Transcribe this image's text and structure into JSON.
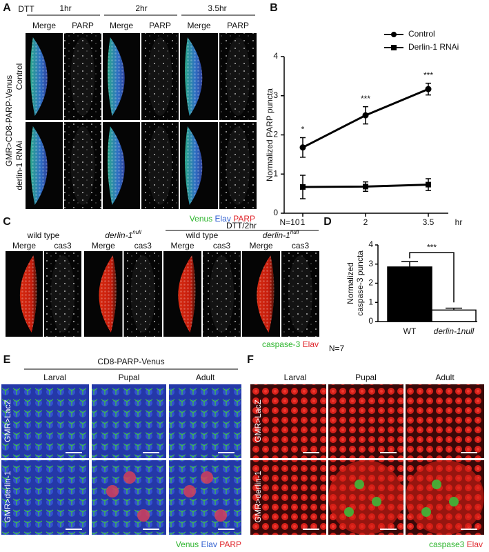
{
  "panel_labels": [
    "A",
    "B",
    "C",
    "D",
    "E",
    "F"
  ],
  "panel_a": {
    "treatment": "DTT",
    "timepoints": [
      "1hr",
      "2hr",
      "3.5hr"
    ],
    "columns": [
      "Merge",
      "PARP",
      "Merge",
      "PARP",
      "Merge",
      "PARP"
    ],
    "genotype": "GMR>CD8-PARP-Venus",
    "rows": [
      "Control",
      "derlin-1 RNAi"
    ],
    "legend": [
      "Venus",
      "Elav",
      "PARP"
    ]
  },
  "panel_c": {
    "groups": [
      {
        "text": "wild type"
      },
      {
        "text": "derlin-1",
        "sup": "null"
      },
      {
        "text": "wild type"
      },
      {
        "text": "derlin-1",
        "sup": "null"
      }
    ],
    "treatment": "DTT/2hr",
    "columns": [
      "Merge",
      "cas3",
      "Merge",
      "cas3",
      "Merge",
      "cas3",
      "Merge",
      "cas3"
    ],
    "legend": [
      "caspase-3",
      "Elav"
    ]
  },
  "panel_e": {
    "title": "CD8-PARP-Venus",
    "columns": [
      "Larval",
      "Pupal",
      "Adult"
    ],
    "rows": [
      "GMR>LacZ",
      "GMR>derlin-1"
    ],
    "legend": [
      "Venus",
      "Elav",
      "PARP"
    ]
  },
  "panel_f": {
    "columns": [
      "Larval",
      "Pupal",
      "Adult"
    ],
    "rows": [
      "GMR>LacZ",
      "GMR>derlin-1"
    ],
    "legend": [
      "caspase3",
      "Elav"
    ]
  },
  "chart_data": [
    {
      "type": "line",
      "ylabel": "Normalized PARP puncta",
      "xlabel": "hr",
      "note": "N=10",
      "categories": [
        "1",
        "2",
        "3.5"
      ],
      "series": [
        {
          "name": "Control",
          "color": "#000000",
          "marker": "circle",
          "values": [
            1.68,
            2.5,
            3.17
          ],
          "errors": [
            0.25,
            0.22,
            0.15
          ]
        },
        {
          "name": "Derlin-1 RNAi",
          "color": "#000000",
          "marker": "square",
          "values": [
            0.67,
            0.68,
            0.73
          ],
          "errors": [
            0.3,
            0.12,
            0.15
          ]
        }
      ],
      "annotations": [
        "*",
        "***",
        "***"
      ],
      "ylim": [
        0,
        4
      ],
      "yticks": [
        0,
        1,
        2,
        3,
        4
      ]
    },
    {
      "type": "bar",
      "ylabel": "Normalized caspase-3 puncta",
      "note": "N=7",
      "categories": [
        "WT",
        "derlin-1null"
      ],
      "values": [
        2.85,
        0.6
      ],
      "errors": [
        0.28,
        0.1
      ],
      "colors": [
        "#000000",
        "#ffffff"
      ],
      "significance": "***",
      "ylim": [
        0,
        4
      ],
      "yticks": [
        0,
        1,
        2,
        3,
        4
      ]
    }
  ]
}
